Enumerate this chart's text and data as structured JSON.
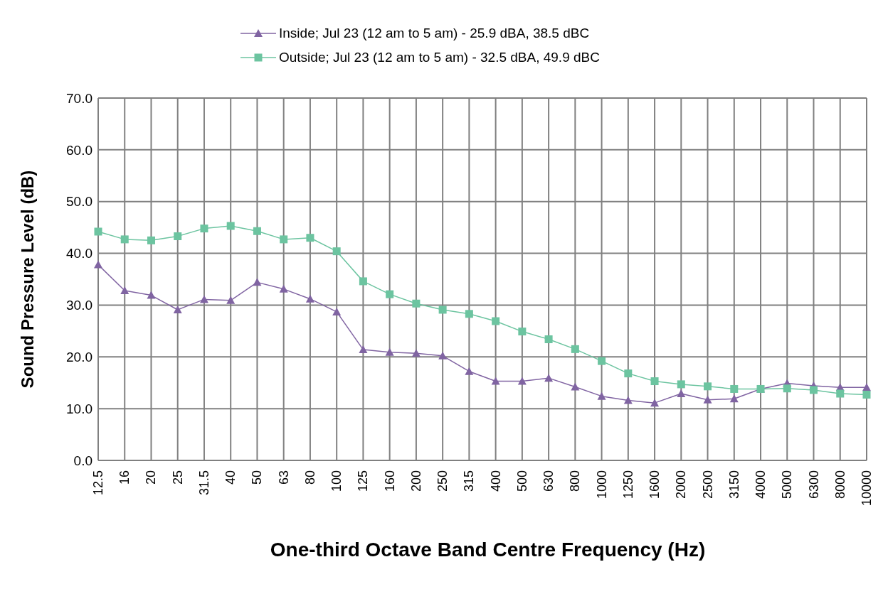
{
  "chart_data": {
    "type": "line",
    "xlabel": "One-third Octave Band Centre Frequency (Hz)",
    "ylabel": "Sound Pressure Level (dB)",
    "categories": [
      "12.5",
      "16",
      "20",
      "25",
      "31.5",
      "40",
      "50",
      "63",
      "80",
      "100",
      "125",
      "160",
      "200",
      "250",
      "315",
      "400",
      "500",
      "630",
      "800",
      "1000",
      "1250",
      "1600",
      "2000",
      "2500",
      "3150",
      "4000",
      "5000",
      "6300",
      "8000",
      "10000"
    ],
    "series": [
      {
        "name": "Inside; Jul 23 (12 am to 5 am) - 25.9 dBA, 38.5 dBC",
        "color": "#8064a2",
        "marker": "triangle",
        "values": [
          37.8,
          32.8,
          31.9,
          29.1,
          31.1,
          30.9,
          34.4,
          33.1,
          31.2,
          28.7,
          21.4,
          20.9,
          20.7,
          20.2,
          17.2,
          15.3,
          15.3,
          15.9,
          14.2,
          12.4,
          11.6,
          11.1,
          12.9,
          11.7,
          11.9,
          13.8,
          14.9,
          14.4,
          14.1,
          14.1
        ]
      },
      {
        "name": "Outside; Jul 23 (12 am to 5 am) - 32.5 dBA, 49.9 dBC",
        "color": "#6cc4a0",
        "marker": "square",
        "values": [
          44.2,
          42.7,
          42.5,
          43.3,
          44.8,
          45.3,
          44.3,
          42.7,
          43.0,
          40.4,
          34.6,
          32.1,
          30.3,
          29.1,
          28.3,
          26.9,
          24.9,
          23.4,
          21.5,
          19.2,
          16.8,
          15.3,
          14.7,
          14.3,
          13.8,
          13.8,
          13.9,
          13.6,
          12.9,
          12.7
        ]
      }
    ],
    "ylim": [
      0,
      70
    ],
    "yticks": [
      {
        "value": 0,
        "label": "0.0"
      },
      {
        "value": 10,
        "label": "10.0"
      },
      {
        "value": 20,
        "label": "20.0"
      },
      {
        "value": 30,
        "label": "30.0"
      },
      {
        "value": 40,
        "label": "40.0"
      },
      {
        "value": 50,
        "label": "50.0"
      },
      {
        "value": 60,
        "label": "60.0"
      },
      {
        "value": 70,
        "label": "70.0"
      }
    ],
    "grid": true,
    "legend": "top",
    "line_style": "solid"
  }
}
